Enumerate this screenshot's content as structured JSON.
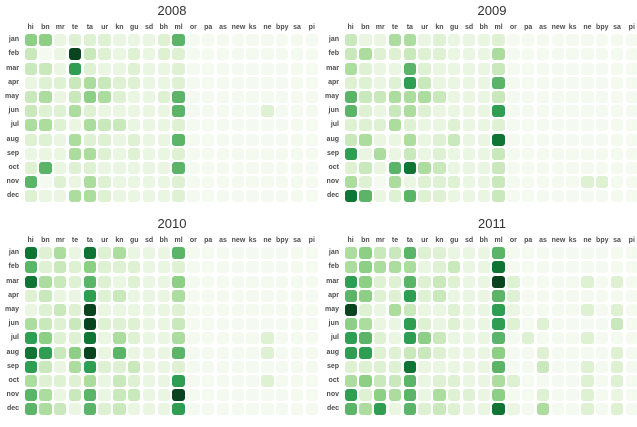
{
  "page": {
    "background": "#ffffff"
  },
  "palette": {
    "colorscale": [
      "#f4faf0",
      "#eaf6e2",
      "#def2d3",
      "#c9e8bb",
      "#addc9f",
      "#8ecf86",
      "#5cb469",
      "#2f9e52",
      "#107434",
      "#09441f"
    ],
    "label_color": "#4d4d4d",
    "title_color": "#333333",
    "cell_gap_color": "#ffffff"
  },
  "chart_data": [
    {
      "type": "heatmap",
      "title": "2008",
      "x_categories": [
        "hi",
        "bn",
        "mr",
        "te",
        "ta",
        "ur",
        "kn",
        "gu",
        "sd",
        "bh",
        "ml",
        "or",
        "pa",
        "as",
        "new",
        "ks",
        "ne",
        "bpy",
        "sa",
        "pi"
      ],
      "y_categories": [
        "jan",
        "feb",
        "mar",
        "apr",
        "may",
        "jun",
        "jul",
        "aug",
        "sep",
        "oct",
        "nov",
        "dec"
      ],
      "value_scale": "intensity 0 (lowest, near-white green) to 9 (darkest green), mapped onto palette.colorscale",
      "legend": "none",
      "grid": "rounded square cells separated by white gaps",
      "values": [
        [
          5,
          5,
          1,
          2,
          2,
          2,
          1,
          1,
          1,
          2,
          6,
          0,
          0,
          0,
          0,
          0,
          0,
          0,
          0,
          0
        ],
        [
          3,
          0,
          1,
          9,
          3,
          2,
          1,
          2,
          1,
          2,
          2,
          0,
          0,
          0,
          0,
          0,
          0,
          0,
          0,
          0
        ],
        [
          3,
          3,
          1,
          7,
          2,
          1,
          1,
          2,
          1,
          1,
          2,
          0,
          0,
          0,
          0,
          0,
          0,
          0,
          0,
          0
        ],
        [
          1,
          2,
          2,
          3,
          4,
          3,
          2,
          2,
          1,
          1,
          2,
          0,
          0,
          0,
          0,
          0,
          0,
          0,
          0,
          0
        ],
        [
          3,
          4,
          1,
          3,
          5,
          4,
          2,
          1,
          1,
          2,
          6,
          0,
          0,
          0,
          0,
          0,
          0,
          0,
          0,
          0
        ],
        [
          3,
          2,
          2,
          4,
          2,
          1,
          1,
          1,
          1,
          1,
          6,
          0,
          0,
          0,
          0,
          0,
          2,
          0,
          0,
          0
        ],
        [
          4,
          4,
          2,
          1,
          4,
          3,
          3,
          1,
          1,
          1,
          2,
          0,
          0,
          0,
          0,
          0,
          0,
          0,
          0,
          0
        ],
        [
          2,
          2,
          1,
          4,
          2,
          2,
          1,
          2,
          1,
          1,
          6,
          0,
          0,
          0,
          0,
          0,
          0,
          0,
          0,
          0
        ],
        [
          1,
          1,
          1,
          4,
          4,
          2,
          1,
          2,
          1,
          1,
          2,
          0,
          0,
          0,
          0,
          0,
          0,
          0,
          0,
          0
        ],
        [
          2,
          6,
          1,
          2,
          2,
          1,
          1,
          1,
          1,
          1,
          6,
          0,
          0,
          0,
          0,
          0,
          0,
          0,
          0,
          0
        ],
        [
          6,
          0,
          2,
          1,
          4,
          2,
          1,
          1,
          1,
          1,
          2,
          0,
          0,
          0,
          0,
          0,
          0,
          0,
          0,
          0
        ],
        [
          2,
          1,
          1,
          4,
          4,
          2,
          1,
          1,
          1,
          1,
          2,
          0,
          0,
          0,
          0,
          0,
          0,
          0,
          0,
          0
        ]
      ]
    },
    {
      "type": "heatmap",
      "title": "2009",
      "x_categories": [
        "hi",
        "bn",
        "mr",
        "te",
        "ta",
        "ur",
        "kn",
        "gu",
        "sd",
        "bh",
        "ml",
        "or",
        "pa",
        "as",
        "new",
        "ks",
        "ne",
        "bpy",
        "sa",
        "pi"
      ],
      "y_categories": [
        "jan",
        "feb",
        "mar",
        "apr",
        "may",
        "jun",
        "jul",
        "aug",
        "sep",
        "oct",
        "nov",
        "dec"
      ],
      "value_scale": "intensity 0 (lowest, near-white green) to 9 (darkest green), mapped onto palette.colorscale",
      "legend": "none",
      "grid": "rounded square cells separated by white gaps",
      "values": [
        [
          3,
          1,
          1,
          4,
          4,
          1,
          2,
          1,
          1,
          1,
          2,
          0,
          0,
          0,
          0,
          0,
          0,
          0,
          0,
          0
        ],
        [
          3,
          4,
          2,
          2,
          3,
          2,
          2,
          1,
          1,
          1,
          4,
          0,
          0,
          0,
          0,
          0,
          0,
          0,
          0,
          0
        ],
        [
          4,
          2,
          1,
          1,
          6,
          2,
          1,
          1,
          1,
          1,
          3,
          0,
          0,
          0,
          0,
          0,
          0,
          0,
          0,
          0
        ],
        [
          2,
          2,
          1,
          2,
          7,
          3,
          1,
          1,
          1,
          1,
          6,
          0,
          0,
          0,
          0,
          0,
          0,
          0,
          0,
          0
        ],
        [
          6,
          3,
          3,
          4,
          4,
          4,
          3,
          1,
          1,
          1,
          3,
          0,
          0,
          0,
          0,
          0,
          0,
          0,
          0,
          0
        ],
        [
          6,
          2,
          1,
          3,
          4,
          2,
          1,
          1,
          1,
          1,
          7,
          0,
          0,
          0,
          0,
          0,
          0,
          0,
          0,
          0
        ],
        [
          2,
          2,
          2,
          4,
          2,
          1,
          1,
          2,
          1,
          1,
          2,
          0,
          0,
          0,
          0,
          0,
          0,
          0,
          0,
          0
        ],
        [
          3,
          4,
          1,
          1,
          4,
          1,
          2,
          3,
          1,
          1,
          8,
          0,
          0,
          0,
          0,
          0,
          0,
          0,
          0,
          0
        ],
        [
          7,
          1,
          4,
          1,
          3,
          1,
          2,
          1,
          1,
          1,
          3,
          0,
          0,
          0,
          0,
          0,
          0,
          0,
          0,
          0
        ],
        [
          2,
          3,
          1,
          6,
          8,
          4,
          3,
          1,
          1,
          1,
          3,
          0,
          0,
          0,
          0,
          0,
          0,
          0,
          0,
          0
        ],
        [
          4,
          2,
          0,
          4,
          1,
          2,
          2,
          2,
          1,
          1,
          3,
          0,
          0,
          0,
          0,
          0,
          2,
          2,
          0,
          0
        ],
        [
          8,
          6,
          1,
          2,
          6,
          2,
          2,
          1,
          1,
          1,
          3,
          0,
          0,
          0,
          0,
          0,
          0,
          0,
          0,
          0
        ]
      ]
    },
    {
      "type": "heatmap",
      "title": "2010",
      "x_categories": [
        "hi",
        "bn",
        "mr",
        "te",
        "ta",
        "ur",
        "kn",
        "gu",
        "sd",
        "bh",
        "ml",
        "or",
        "pa",
        "as",
        "new",
        "ks",
        "ne",
        "bpy",
        "sa",
        "pi"
      ],
      "y_categories": [
        "jan",
        "feb",
        "mar",
        "apr",
        "may",
        "jun",
        "jul",
        "aug",
        "sep",
        "oct",
        "nov",
        "dec"
      ],
      "value_scale": "intensity 0 (lowest, near-white green) to 9 (darkest green), mapped onto palette.colorscale",
      "legend": "none",
      "grid": "rounded square cells separated by white gaps",
      "values": [
        [
          8,
          2,
          4,
          1,
          8,
          2,
          4,
          1,
          1,
          1,
          6,
          0,
          0,
          0,
          0,
          0,
          0,
          0,
          0,
          0
        ],
        [
          6,
          2,
          3,
          2,
          5,
          2,
          2,
          2,
          1,
          1,
          2,
          0,
          0,
          0,
          0,
          0,
          0,
          0,
          0,
          0
        ],
        [
          8,
          4,
          3,
          2,
          6,
          2,
          1,
          2,
          1,
          1,
          5,
          0,
          0,
          0,
          0,
          0,
          0,
          0,
          0,
          0
        ],
        [
          2,
          3,
          1,
          1,
          7,
          2,
          3,
          1,
          1,
          1,
          4,
          0,
          0,
          0,
          0,
          0,
          0,
          0,
          0,
          0
        ],
        [
          1,
          2,
          3,
          2,
          9,
          1,
          1,
          1,
          1,
          1,
          2,
          0,
          0,
          0,
          0,
          0,
          0,
          0,
          0,
          0
        ],
        [
          4,
          3,
          2,
          3,
          9,
          2,
          2,
          2,
          1,
          1,
          3,
          0,
          0,
          0,
          0,
          0,
          0,
          0,
          0,
          0
        ],
        [
          7,
          5,
          2,
          2,
          8,
          1,
          4,
          2,
          1,
          1,
          4,
          0,
          0,
          0,
          0,
          0,
          2,
          0,
          0,
          0
        ],
        [
          8,
          7,
          3,
          5,
          9,
          1,
          6,
          1,
          1,
          1,
          6,
          0,
          0,
          0,
          0,
          0,
          2,
          0,
          0,
          0
        ],
        [
          7,
          3,
          1,
          4,
          7,
          2,
          2,
          3,
          1,
          1,
          2,
          0,
          0,
          0,
          0,
          0,
          0,
          0,
          0,
          0
        ],
        [
          4,
          2,
          2,
          2,
          4,
          1,
          3,
          2,
          1,
          1,
          7,
          0,
          0,
          0,
          0,
          0,
          2,
          0,
          0,
          0
        ],
        [
          6,
          4,
          1,
          3,
          6,
          1,
          3,
          3,
          1,
          1,
          9,
          0,
          0,
          0,
          0,
          0,
          0,
          0,
          0,
          0
        ],
        [
          6,
          4,
          3,
          1,
          6,
          2,
          3,
          1,
          1,
          1,
          7,
          0,
          0,
          0,
          0,
          0,
          0,
          0,
          0,
          0
        ]
      ]
    },
    {
      "type": "heatmap",
      "title": "2011",
      "x_categories": [
        "hi",
        "bn",
        "mr",
        "te",
        "ta",
        "ur",
        "kn",
        "gu",
        "sd",
        "bh",
        "ml",
        "or",
        "pa",
        "as",
        "new",
        "ks",
        "ne",
        "bpy",
        "sa",
        "pi"
      ],
      "y_categories": [
        "jan",
        "feb",
        "mar",
        "apr",
        "may",
        "jun",
        "jul",
        "aug",
        "sep",
        "oct",
        "nov",
        "dec"
      ],
      "value_scale": "intensity 0 (lowest, near-white green) to 9 (darkest green), mapped onto palette.colorscale",
      "legend": "none",
      "grid": "rounded square cells separated by white gaps",
      "values": [
        [
          4,
          5,
          3,
          3,
          6,
          2,
          2,
          1,
          1,
          1,
          6,
          0,
          0,
          0,
          0,
          0,
          0,
          0,
          0,
          0
        ],
        [
          4,
          5,
          4,
          4,
          4,
          1,
          2,
          3,
          1,
          1,
          8,
          0,
          0,
          0,
          0,
          0,
          0,
          0,
          0,
          0
        ],
        [
          7,
          5,
          2,
          2,
          6,
          2,
          3,
          2,
          1,
          1,
          9,
          2,
          0,
          0,
          0,
          0,
          2,
          0,
          2,
          0
        ],
        [
          6,
          5,
          2,
          2,
          7,
          2,
          3,
          1,
          1,
          1,
          6,
          2,
          0,
          0,
          0,
          0,
          0,
          0,
          0,
          0
        ],
        [
          9,
          2,
          1,
          4,
          3,
          1,
          1,
          2,
          1,
          1,
          7,
          1,
          0,
          0,
          0,
          0,
          2,
          0,
          2,
          0
        ],
        [
          5,
          4,
          1,
          1,
          7,
          2,
          1,
          2,
          1,
          1,
          7,
          2,
          0,
          2,
          0,
          0,
          0,
          0,
          3,
          0
        ],
        [
          7,
          6,
          2,
          1,
          7,
          5,
          3,
          1,
          1,
          1,
          6,
          0,
          2,
          0,
          0,
          0,
          2,
          0,
          0,
          0
        ],
        [
          7,
          7,
          2,
          2,
          3,
          3,
          2,
          1,
          1,
          1,
          5,
          0,
          0,
          2,
          0,
          0,
          0,
          0,
          2,
          0
        ],
        [
          2,
          2,
          2,
          2,
          8,
          1,
          1,
          1,
          1,
          1,
          6,
          0,
          0,
          3,
          0,
          0,
          2,
          0,
          2,
          0
        ],
        [
          4,
          5,
          3,
          3,
          6,
          1,
          2,
          2,
          1,
          1,
          4,
          2,
          0,
          0,
          0,
          0,
          2,
          0,
          2,
          0
        ],
        [
          7,
          2,
          5,
          4,
          6,
          1,
          4,
          2,
          2,
          1,
          5,
          0,
          0,
          2,
          0,
          0,
          2,
          0,
          1,
          0
        ],
        [
          6,
          4,
          7,
          1,
          6,
          2,
          3,
          2,
          1,
          1,
          8,
          1,
          0,
          4,
          0,
          0,
          2,
          0,
          2,
          0
        ]
      ]
    }
  ]
}
